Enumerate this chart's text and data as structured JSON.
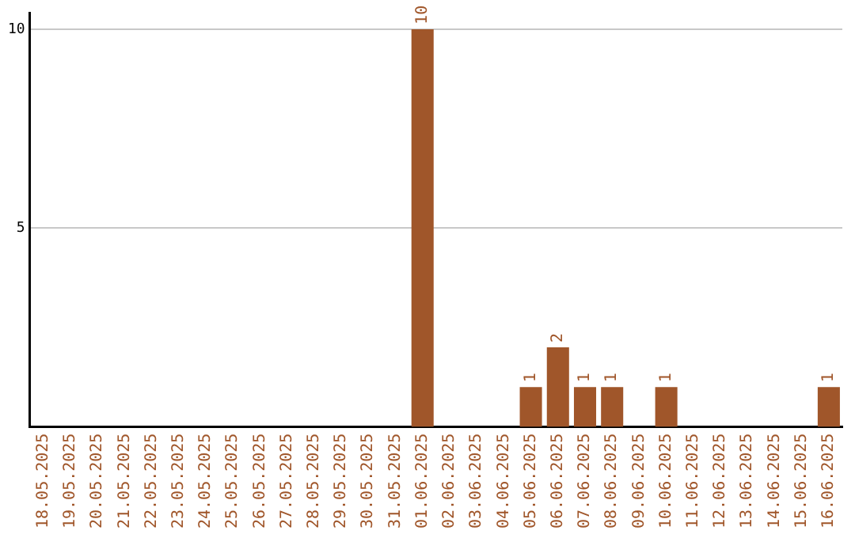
{
  "chart_data": {
    "type": "bar",
    "categories": [
      "18.05.2025",
      "19.05.2025",
      "20.05.2025",
      "21.05.2025",
      "22.05.2025",
      "23.05.2025",
      "24.05.2025",
      "25.05.2025",
      "26.05.2025",
      "27.05.2025",
      "28.05.2025",
      "29.05.2025",
      "30.05.2025",
      "31.05.2025",
      "01.06.2025",
      "02.06.2025",
      "03.06.2025",
      "04.06.2025",
      "05.06.2025",
      "06.06.2025",
      "07.06.2025",
      "08.06.2025",
      "09.06.2025",
      "10.06.2025",
      "11.06.2025",
      "12.06.2025",
      "13.06.2025",
      "14.06.2025",
      "15.06.2025",
      "16.06.2025"
    ],
    "values": [
      0,
      0,
      0,
      0,
      0,
      0,
      0,
      0,
      0,
      0,
      0,
      0,
      0,
      0,
      10,
      0,
      0,
      0,
      1,
      2,
      1,
      1,
      0,
      1,
      0,
      0,
      0,
      0,
      0,
      1
    ],
    "value_labels": [
      null,
      null,
      null,
      null,
      null,
      null,
      null,
      null,
      null,
      null,
      null,
      null,
      null,
      null,
      "10",
      null,
      null,
      null,
      "1",
      "2",
      "1",
      "1",
      null,
      "1",
      null,
      null,
      null,
      null,
      null,
      "1"
    ],
    "color": "#a0562a",
    "ylim": [
      0,
      10.4
    ],
    "yticks": [
      5,
      10
    ],
    "grid": "y",
    "legend": false
  }
}
